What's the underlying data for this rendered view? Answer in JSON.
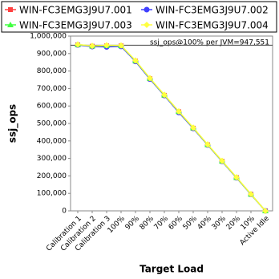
{
  "chart_data": {
    "type": "line",
    "x_label": "Target Load",
    "y_label": "ssj_ops",
    "annotation": "ssj_ops@100% per JVM=947,551",
    "reference_value": 947551,
    "categories": [
      "Calibration 1",
      "Calibration 2",
      "Calibration 3",
      "100%",
      "90%",
      "80%",
      "70%",
      "60%",
      "50%",
      "40%",
      "30%",
      "20%",
      "10%",
      "Active Idle"
    ],
    "series": [
      {
        "name": "WIN-FC3EMG3J9U7.001",
        "color": "#ff4040",
        "marker": "square",
        "values": [
          950000,
          942000,
          944000,
          944000,
          857000,
          756000,
          661000,
          567000,
          473000,
          378000,
          284000,
          190000,
          95000,
          0
        ]
      },
      {
        "name": "WIN-FC3EMG3J9U7.002",
        "color": "#4040ff",
        "marker": "circle",
        "values": [
          949000,
          940000,
          938000,
          941000,
          855000,
          754000,
          660000,
          563000,
          472000,
          377000,
          283000,
          189000,
          94000,
          0
        ]
      },
      {
        "name": "WIN-FC3EMG3J9U7.003",
        "color": "#40ff40",
        "marker": "triangle",
        "values": [
          951000,
          943000,
          946000,
          945000,
          859000,
          758000,
          663000,
          568000,
          475000,
          379000,
          285000,
          191000,
          95000,
          0
        ]
      },
      {
        "name": "WIN-FC3EMG3J9U7.004",
        "color": "#ffff40",
        "marker": "diamond",
        "values": [
          952000,
          944000,
          947000,
          946000,
          860000,
          759000,
          664000,
          569000,
          476000,
          380000,
          286000,
          192000,
          96000,
          0
        ]
      }
    ],
    "ylim": [
      0,
      1000000
    ],
    "yticks": [
      {
        "value": 0,
        "label": "0"
      },
      {
        "value": 100000,
        "label": "100,000"
      },
      {
        "value": 200000,
        "label": "200,000"
      },
      {
        "value": 300000,
        "label": "300,000"
      },
      {
        "value": 400000,
        "label": "400,000"
      },
      {
        "value": 500000,
        "label": "500,000"
      },
      {
        "value": 600000,
        "label": "600,000"
      },
      {
        "value": 700000,
        "label": "700,000"
      },
      {
        "value": 800000,
        "label": "800,000"
      },
      {
        "value": 900000,
        "label": "900,000"
      },
      {
        "value": 1000000,
        "label": "1,000,000"
      }
    ],
    "grid": false
  }
}
